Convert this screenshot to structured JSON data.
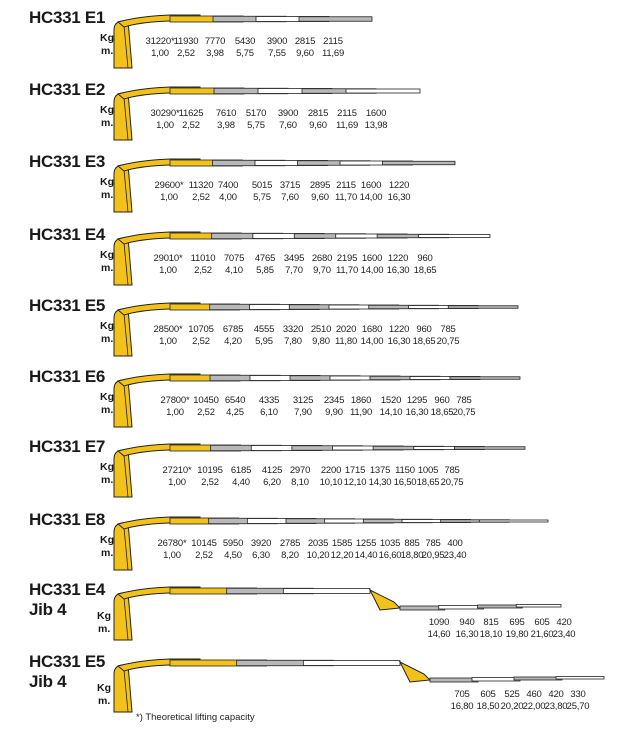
{
  "footnote": "*) Theoretical lifting capacity",
  "colors": {
    "yellow": "#f2c21a",
    "grey": "#b8b8b8",
    "outline": "#222222"
  },
  "unit_labels": {
    "weight": "Kg",
    "distance": "m."
  },
  "models": [
    {
      "name": "HC331 E1",
      "weights": [
        "31220*",
        "11930",
        "7770",
        "5430",
        "3900",
        "2815",
        "2115"
      ],
      "reach": [
        "1,00",
        "2,52",
        "3,98",
        "5,75",
        "7,55",
        "9,60",
        "11,69"
      ]
    },
    {
      "name": "HC331 E2",
      "weights": [
        "30290*",
        "11625",
        "7610",
        "5170",
        "3900",
        "2815",
        "2115",
        "1600"
      ],
      "reach": [
        "1,00",
        "2,52",
        "3,98",
        "5,75",
        "7,60",
        "9,60",
        "11,69",
        "13,98"
      ]
    },
    {
      "name": "HC331 E3",
      "weights": [
        "29600*",
        "11320",
        "7400",
        "5015",
        "3715",
        "2895",
        "2115",
        "1600",
        "1220"
      ],
      "reach": [
        "1,00",
        "2,52",
        "4,00",
        "5,75",
        "7,60",
        "9,60",
        "11,70",
        "14,00",
        "16,30"
      ]
    },
    {
      "name": "HC331 E4",
      "weights": [
        "29010*",
        "11010",
        "7075",
        "4765",
        "3495",
        "2680",
        "2195",
        "1600",
        "1220",
        "960"
      ],
      "reach": [
        "1,00",
        "2,52",
        "4,10",
        "5,85",
        "7,70",
        "9,70",
        "11,70",
        "14,00",
        "16,30",
        "18,65"
      ]
    },
    {
      "name": "HC331 E5",
      "weights": [
        "28500*",
        "10705",
        "6785",
        "4555",
        "3320",
        "2510",
        "2020",
        "1680",
        "1220",
        "960",
        "785"
      ],
      "reach": [
        "1,00",
        "2,52",
        "4,20",
        "5,95",
        "7,80",
        "9,80",
        "11,80",
        "14,00",
        "16,30",
        "18,65",
        "20,75"
      ]
    },
    {
      "name": "HC331 E6",
      "weights": [
        "27800*",
        "10450",
        "6540",
        "4335",
        "3125",
        "2345",
        "1860",
        "1520",
        "1295",
        "960",
        "785"
      ],
      "reach": [
        "1,00",
        "2,52",
        "4,25",
        "6,10",
        "7,90",
        "9,90",
        "11,90",
        "14,10",
        "16,30",
        "18,65",
        "20,75"
      ]
    },
    {
      "name": "HC331 E7",
      "weights": [
        "27210*",
        "10195",
        "6185",
        "4125",
        "2970",
        "2200",
        "1715",
        "1375",
        "1150",
        "1005",
        "785"
      ],
      "reach": [
        "1,00",
        "2,52",
        "4,40",
        "6,20",
        "8,10",
        "10,10",
        "12,10",
        "14,30",
        "16,50",
        "18,65",
        "20,75"
      ]
    },
    {
      "name": "HC331 E8",
      "weights": [
        "26780*",
        "10145",
        "5950",
        "3920",
        "2785",
        "2035",
        "1585",
        "1255",
        "1035",
        "885",
        "785",
        "400"
      ],
      "reach": [
        "1,00",
        "2,52",
        "4,50",
        "6,30",
        "8,20",
        "10,20",
        "12,20",
        "14,40",
        "16,60",
        "18,80",
        "20,95",
        "23,40"
      ]
    },
    {
      "name": "HC331 E4",
      "name_line2": "Jib 4",
      "weights": [
        "1090",
        "940",
        "815",
        "695",
        "605",
        "420"
      ],
      "reach": [
        "14,60",
        "16,30",
        "18,10",
        "19,80",
        "21,60",
        "23,40"
      ]
    },
    {
      "name": "HC331 E5",
      "name_line2": "Jib 4",
      "weights": [
        "705",
        "605",
        "525",
        "460",
        "420",
        "330"
      ],
      "reach": [
        "16,80",
        "18,50",
        "20,20",
        "22,00",
        "23,80",
        "25,70"
      ]
    }
  ]
}
